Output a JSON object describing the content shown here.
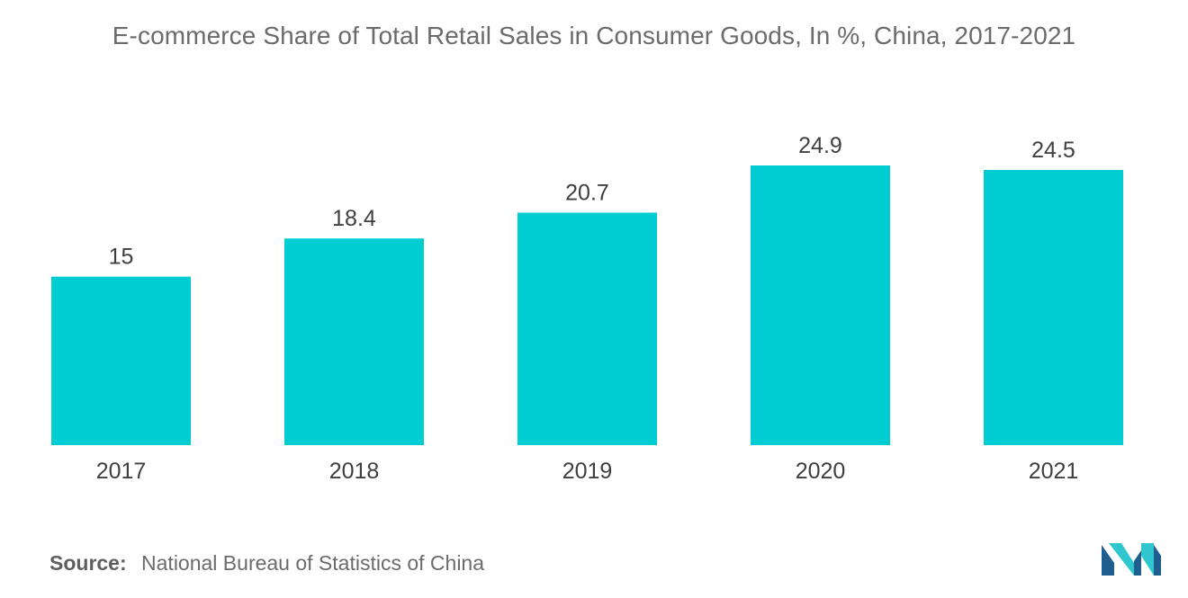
{
  "title": "E-commerce Share of Total Retail Sales in Consumer Goods, In %, China, 2017-2021",
  "source": {
    "label": "Source:",
    "text": "National Bureau of Statistics of China"
  },
  "colors": {
    "bar": "#00cdd1",
    "logo_dark": "#1f5f8f",
    "logo_light": "#2fc6cf"
  },
  "logo_icon": "mordor-intelligence-logo",
  "chart_data": {
    "type": "bar",
    "categories": [
      "2017",
      "2018",
      "2019",
      "2020",
      "2021"
    ],
    "values": [
      15,
      18.4,
      20.7,
      24.9,
      24.5
    ],
    "value_labels": [
      "15",
      "18.4",
      "20.7",
      "24.9",
      "24.5"
    ],
    "title": "E-commerce Share of Total Retail Sales in Consumer Goods, In %, China, 2017-2021",
    "xlabel": "",
    "ylabel": "",
    "ylim": [
      0,
      24.9
    ],
    "grid": false,
    "legend": "none"
  }
}
